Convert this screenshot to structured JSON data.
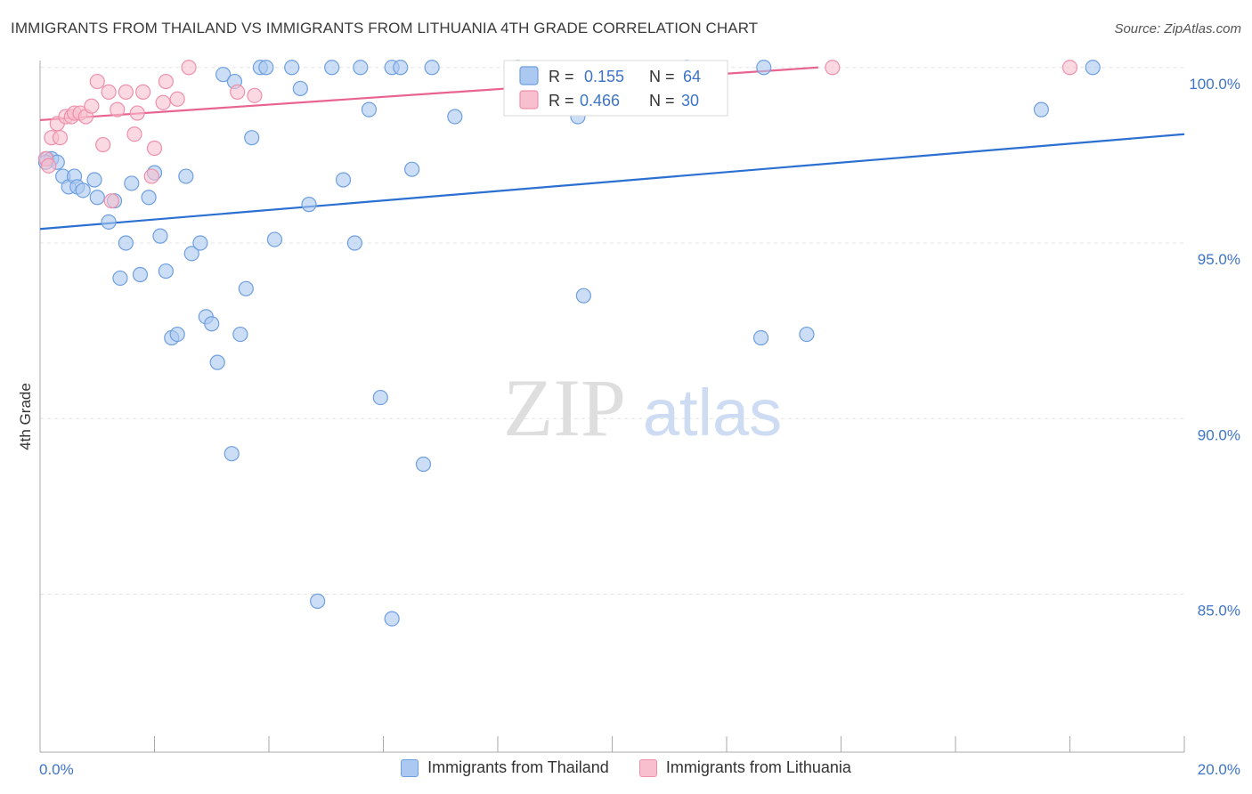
{
  "header": {
    "title": "IMMIGRANTS FROM THAILAND VS IMMIGRANTS FROM LITHUANIA 4TH GRADE CORRELATION CHART",
    "source": "Source: ZipAtlas.com"
  },
  "watermark": {
    "zip": "ZIP",
    "atlas": "atlas"
  },
  "legend": {
    "r_label": "R =",
    "n_label": "N =",
    "thailand": {
      "r": "0.155",
      "n": "64"
    },
    "lithuania": {
      "r": "0.466",
      "n": "30"
    }
  },
  "colors": {
    "thailand_fill": "#aac8f0",
    "thailand_stroke": "#6e9fe0",
    "thailand_line": "#2b6fd1",
    "lithuania_fill": "#f8c0cf",
    "lithuania_stroke": "#ee90ab",
    "lithuania_line": "#e8648f",
    "tick_text": "#3d74c7",
    "grid": "#e4e4e4"
  },
  "chart_data": {
    "type": "scatter",
    "title": "IMMIGRANTS FROM THAILAND VS IMMIGRANTS FROM LITHUANIA 4TH GRADE CORRELATION CHART",
    "xlabel": "",
    "ylabel": "4th Grade",
    "xlim": [
      0,
      20
    ],
    "ylim": [
      80.5,
      100.4
    ],
    "x_tick_labels": [
      "0.0%",
      "20.0%"
    ],
    "y_ticks": [
      100,
      95,
      90,
      85
    ],
    "y_tick_labels": [
      "100.0%",
      "95.0%",
      "90.0%",
      "85.0%"
    ],
    "grid": true,
    "series": [
      {
        "name": "Immigrants from Thailand",
        "trend": {
          "x": [
            0,
            20
          ],
          "y": [
            95.4,
            98.1
          ]
        },
        "points": [
          [
            0.12,
            97.4
          ],
          [
            0.2,
            97.4
          ],
          [
            0.3,
            97.3
          ],
          [
            0.4,
            96.9
          ],
          [
            0.5,
            96.6
          ],
          [
            0.6,
            96.9
          ],
          [
            0.65,
            96.6
          ],
          [
            0.75,
            96.5
          ],
          [
            0.95,
            96.8
          ],
          [
            1.0,
            96.3
          ],
          [
            1.2,
            95.6
          ],
          [
            1.3,
            96.2
          ],
          [
            1.4,
            94.0
          ],
          [
            1.5,
            95.0
          ],
          [
            1.6,
            96.7
          ],
          [
            1.75,
            94.1
          ],
          [
            1.9,
            96.3
          ],
          [
            2.0,
            97.0
          ],
          [
            2.1,
            95.2
          ],
          [
            2.2,
            94.2
          ],
          [
            2.3,
            92.3
          ],
          [
            2.4,
            92.4
          ],
          [
            2.55,
            96.9
          ],
          [
            2.65,
            94.7
          ],
          [
            2.8,
            95.0
          ],
          [
            2.9,
            92.9
          ],
          [
            3.0,
            92.7
          ],
          [
            3.1,
            91.6
          ],
          [
            3.2,
            99.8
          ],
          [
            3.35,
            89.0
          ],
          [
            3.4,
            99.6
          ],
          [
            3.5,
            92.4
          ],
          [
            3.6,
            93.7
          ],
          [
            3.7,
            98.0
          ],
          [
            3.85,
            100.0
          ],
          [
            3.95,
            100.0
          ],
          [
            4.1,
            95.1
          ],
          [
            4.4,
            100.0
          ],
          [
            4.55,
            99.4
          ],
          [
            4.7,
            96.1
          ],
          [
            4.85,
            84.8
          ],
          [
            5.1,
            100.0
          ],
          [
            5.3,
            96.8
          ],
          [
            5.5,
            95.0
          ],
          [
            5.6,
            100.0
          ],
          [
            5.75,
            98.8
          ],
          [
            5.95,
            90.6
          ],
          [
            6.15,
            100.0
          ],
          [
            6.3,
            100.0
          ],
          [
            6.5,
            97.1
          ],
          [
            6.15,
            84.3
          ],
          [
            6.7,
            88.7
          ],
          [
            6.85,
            100.0
          ],
          [
            7.25,
            98.6
          ],
          [
            8.35,
            100.0
          ],
          [
            9.4,
            98.6
          ],
          [
            9.5,
            93.5
          ],
          [
            11.3,
            100.0
          ],
          [
            12.6,
            92.3
          ],
          [
            12.65,
            100.0
          ],
          [
            13.4,
            92.4
          ],
          [
            17.5,
            98.8
          ],
          [
            18.4,
            100.0
          ],
          [
            0.1,
            97.3
          ]
        ]
      },
      {
        "name": "Immigrants from Lithuania",
        "trend": {
          "x": [
            0,
            13.6
          ],
          "y": [
            98.5,
            100.0
          ]
        },
        "points": [
          [
            0.1,
            97.4
          ],
          [
            0.15,
            97.2
          ],
          [
            0.2,
            98.0
          ],
          [
            0.3,
            98.4
          ],
          [
            0.35,
            98.0
          ],
          [
            0.45,
            98.6
          ],
          [
            0.55,
            98.6
          ],
          [
            0.6,
            98.7
          ],
          [
            0.7,
            98.7
          ],
          [
            0.8,
            98.6
          ],
          [
            0.9,
            98.9
          ],
          [
            1.0,
            99.6
          ],
          [
            1.1,
            97.8
          ],
          [
            1.2,
            99.3
          ],
          [
            1.25,
            96.2
          ],
          [
            1.35,
            98.8
          ],
          [
            1.5,
            99.3
          ],
          [
            1.65,
            98.1
          ],
          [
            1.7,
            98.7
          ],
          [
            1.8,
            99.3
          ],
          [
            1.95,
            96.9
          ],
          [
            2.0,
            97.7
          ],
          [
            2.15,
            99.0
          ],
          [
            2.2,
            99.6
          ],
          [
            2.4,
            99.1
          ],
          [
            2.6,
            100.0
          ],
          [
            3.45,
            99.3
          ],
          [
            3.75,
            99.2
          ],
          [
            13.85,
            100.0
          ],
          [
            18.0,
            100.0
          ]
        ]
      }
    ]
  },
  "bottom_legend": {
    "thailand_label": "Immigrants from Thailand",
    "lithuania_label": "Immigrants from Lithuania"
  }
}
